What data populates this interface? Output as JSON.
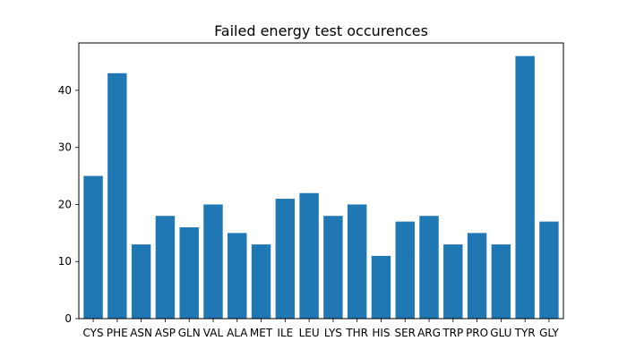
{
  "chart_data": {
    "type": "bar",
    "title": "Failed energy test occurences",
    "xlabel": "",
    "ylabel": "",
    "categories": [
      "CYS",
      "PHE",
      "ASN",
      "ASP",
      "GLN",
      "VAL",
      "ALA",
      "MET",
      "ILE",
      "LEU",
      "LYS",
      "THR",
      "HIS",
      "SER",
      "ARG",
      "TRP",
      "PRO",
      "GLU",
      "TYR",
      "GLY"
    ],
    "values": [
      25,
      43,
      13,
      18,
      16,
      20,
      15,
      13,
      21,
      22,
      18,
      20,
      11,
      17,
      18,
      13,
      15,
      13,
      46,
      17
    ],
    "ylim": [
      0,
      48.3
    ],
    "yticks": [
      0,
      10,
      20,
      30,
      40
    ],
    "grid": false,
    "legend": "none",
    "bar_color": "#1f77b4"
  }
}
